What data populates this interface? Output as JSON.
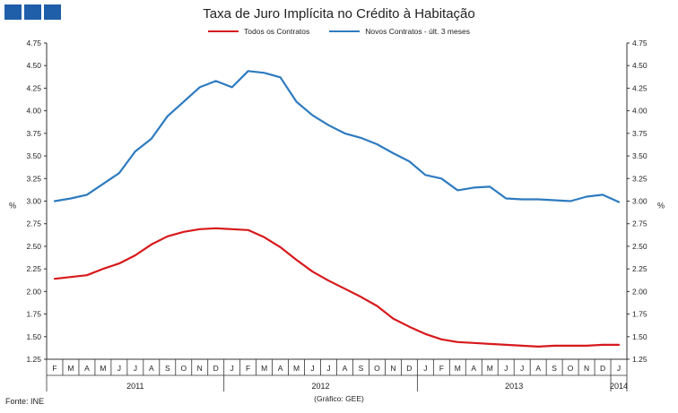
{
  "header": {
    "title": "Taxa de Juro Implícita no Crédito à Habitação"
  },
  "legend": [
    {
      "label": "Todos os Contratos",
      "color": "#d7191c"
    },
    {
      "label": "Novos Contratos - últ. 3 meses",
      "color": "#2e7bbf"
    }
  ],
  "footer": {
    "source": "Fonte: INE",
    "credit": "(Gráfico: GEE)"
  },
  "chart_data": {
    "type": "line",
    "ylabel_left": "%",
    "ylabel_right": "%",
    "ylim": [
      1.25,
      4.75
    ],
    "yticks": [
      "1.25",
      "1.50",
      "1.75",
      "2.00",
      "2.25",
      "2.50",
      "2.75",
      "3.00",
      "3.25",
      "3.50",
      "3.75",
      "4.00",
      "4.25",
      "4.50",
      "4.75"
    ],
    "months": [
      "F",
      "M",
      "A",
      "M",
      "J",
      "J",
      "A",
      "S",
      "O",
      "N",
      "D",
      "J",
      "F",
      "M",
      "A",
      "M",
      "J",
      "J",
      "A",
      "S",
      "O",
      "N",
      "D",
      "J",
      "F",
      "M",
      "A",
      "M",
      "J",
      "J",
      "A",
      "S",
      "O",
      "N",
      "D",
      "J"
    ],
    "years": [
      {
        "label": "2011",
        "start": 0,
        "end": 10
      },
      {
        "label": "2012",
        "start": 11,
        "end": 22
      },
      {
        "label": "2013",
        "start": 23,
        "end": 34
      },
      {
        "label": "2014",
        "start": 35,
        "end": 35
      }
    ],
    "series": [
      {
        "name": "Todos os Contratos",
        "color": "#d7191c",
        "values": [
          2.14,
          2.16,
          2.18,
          2.25,
          2.31,
          2.4,
          2.52,
          2.61,
          2.66,
          2.69,
          2.7,
          2.69,
          2.68,
          2.6,
          2.49,
          2.35,
          2.22,
          2.12,
          2.03,
          1.94,
          1.84,
          1.7,
          1.61,
          1.53,
          1.47,
          1.44,
          1.43,
          1.42,
          1.41,
          1.4,
          1.39,
          1.4,
          1.4,
          1.4,
          1.41,
          1.41
        ]
      },
      {
        "name": "Novos Contratos - últ. 3 meses",
        "color": "#2e7bbf",
        "values": [
          3.0,
          3.03,
          3.07,
          3.19,
          3.31,
          3.55,
          3.69,
          3.94,
          4.1,
          4.26,
          4.33,
          4.26,
          4.44,
          4.42,
          4.37,
          4.1,
          3.95,
          3.84,
          3.75,
          3.7,
          3.63,
          3.53,
          3.44,
          3.29,
          3.25,
          3.12,
          3.15,
          3.16,
          3.03,
          3.02,
          3.02,
          3.01,
          3.0,
          3.05,
          3.07,
          2.99
        ]
      }
    ]
  }
}
